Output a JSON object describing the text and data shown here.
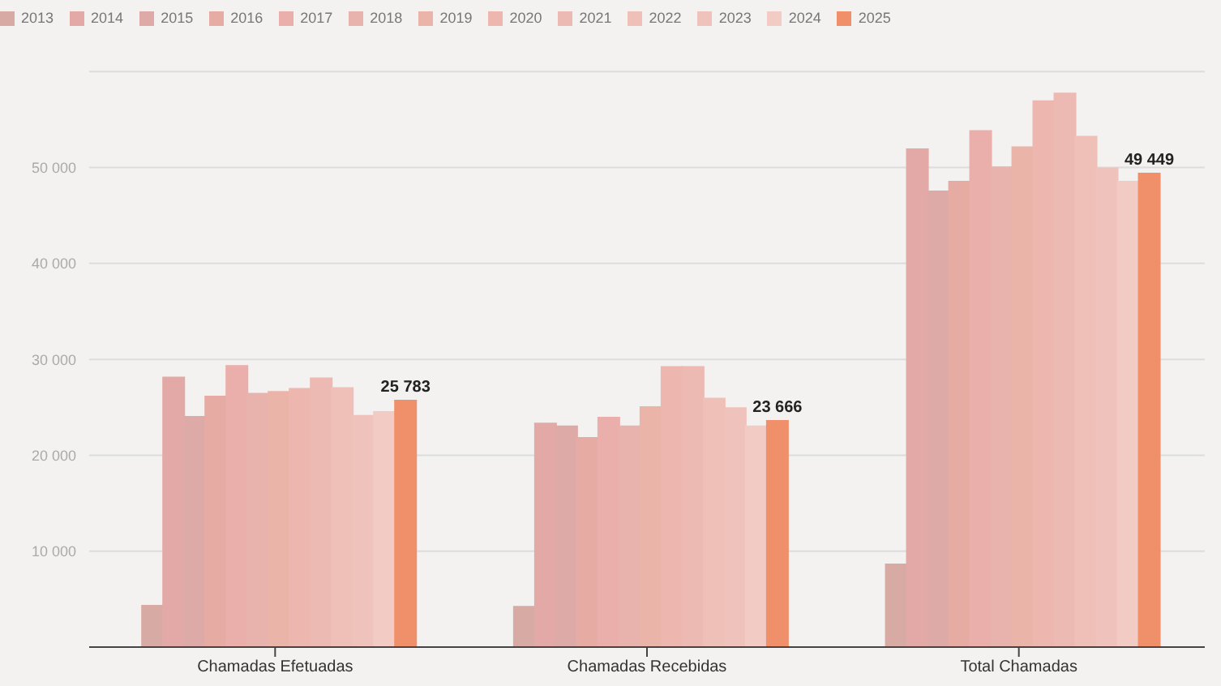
{
  "chart_data": {
    "type": "bar",
    "categories": [
      "Chamadas Efetuadas",
      "Chamadas Recebidas",
      "Total Chamadas"
    ],
    "series": [
      {
        "name": "2013",
        "color": "#d8aaa4",
        "values": [
          4400,
          4300,
          8700
        ]
      },
      {
        "name": "2014",
        "color": "#e2a9a6",
        "values": [
          28200,
          23400,
          52000
        ]
      },
      {
        "name": "2015",
        "color": "#deaaa8",
        "values": [
          24100,
          23100,
          47600
        ]
      },
      {
        "name": "2016",
        "color": "#e6aca4",
        "values": [
          26200,
          21900,
          48600
        ]
      },
      {
        "name": "2017",
        "color": "#eaaeab",
        "values": [
          29400,
          24000,
          53900
        ]
      },
      {
        "name": "2018",
        "color": "#e8b3ad",
        "values": [
          26500,
          23100,
          50100
        ]
      },
      {
        "name": "2019",
        "color": "#ebb4a9",
        "values": [
          26700,
          25100,
          52200
        ]
      },
      {
        "name": "2020",
        "color": "#edb6ae",
        "values": [
          27000,
          29300,
          57000
        ]
      },
      {
        "name": "2021",
        "color": "#ecbab3",
        "values": [
          28100,
          29300,
          57800
        ]
      },
      {
        "name": "2022",
        "color": "#efc0b8",
        "values": [
          27100,
          26000,
          53300
        ]
      },
      {
        "name": "2023",
        "color": "#efc3bb",
        "values": [
          24200,
          25000,
          50000
        ]
      },
      {
        "name": "2024",
        "color": "#f1cbc4",
        "values": [
          24600,
          23100,
          48600
        ]
      },
      {
        "name": "2025",
        "color": "#f0906a",
        "values": [
          25783,
          23666,
          49449
        ],
        "value_labels": [
          "25 783",
          "23 666",
          "49 449"
        ]
      }
    ],
    "ylim": [
      0,
      60000
    ],
    "yticks": [
      {
        "value": 10000,
        "label": "10 000"
      },
      {
        "value": 20000,
        "label": "20 000"
      },
      {
        "value": 30000,
        "label": "30 000"
      },
      {
        "value": 40000,
        "label": "40 000"
      },
      {
        "value": 50000,
        "label": "50 000"
      }
    ],
    "grid": "y",
    "legend": "top left"
  }
}
